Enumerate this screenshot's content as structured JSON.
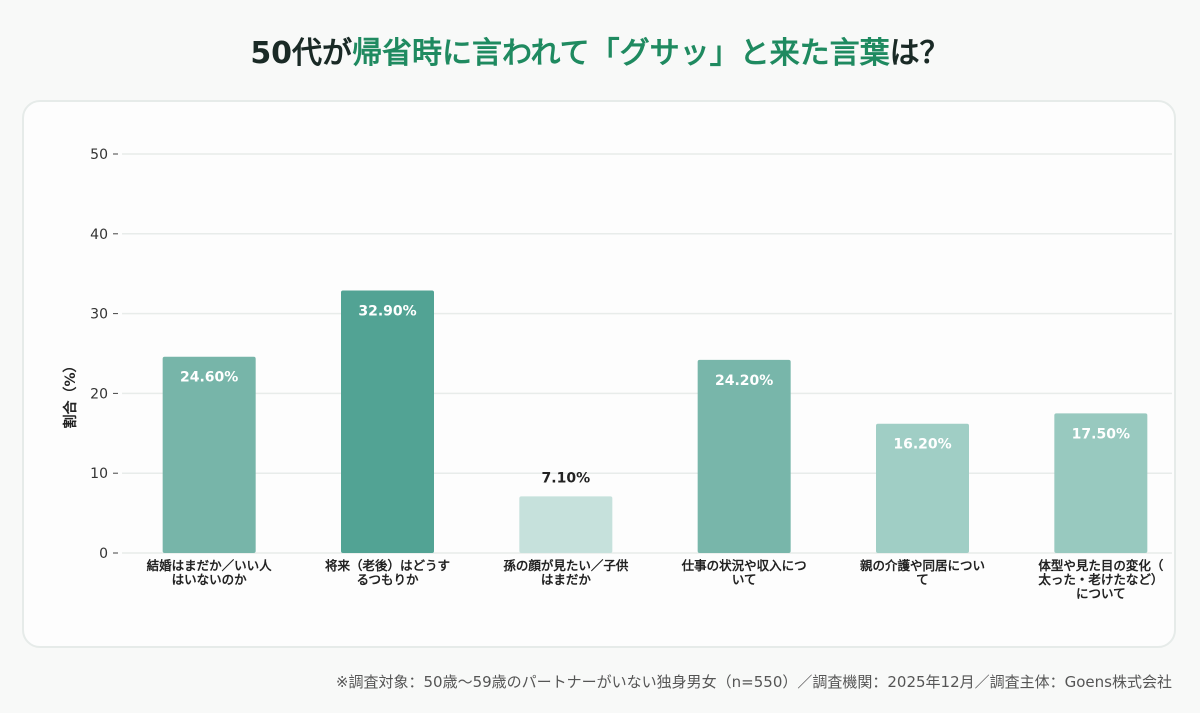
{
  "title": {
    "part1": "50代が",
    "part2": "帰省時に言われて「グサッ」と来た言葉",
    "part3": "は？"
  },
  "chart_data": {
    "type": "bar",
    "title": "50代が帰省時に言われて「グサッ」と来た言葉は？",
    "xlabel": "",
    "ylabel": "割合（%）",
    "ylim": [
      0,
      50
    ],
    "yticks": [
      0,
      10,
      20,
      30,
      40,
      50
    ],
    "grid": true,
    "categories": [
      [
        "結婚はまだか／いい人",
        "はいないのか"
      ],
      [
        "将来（老後）はどうす",
        "るつもりか"
      ],
      [
        "孫の顔が見たい／子供",
        "はまだか"
      ],
      [
        "仕事の状況や収入につ",
        "いて"
      ],
      [
        "親の介護や同居につい",
        "て"
      ],
      [
        "体型や見た目の変化（",
        "太った・老けたなど）",
        "について"
      ]
    ],
    "values": [
      24.6,
      32.9,
      7.1,
      24.2,
      16.2,
      17.5
    ],
    "data_labels": [
      "24.60%",
      "32.90%",
      "7.10%",
      "24.20%",
      "16.20%",
      "17.50%"
    ],
    "colors": [
      "#77b5a9",
      "#52a394",
      "#c6e1dc",
      "#78b6aa",
      "#a0cec5",
      "#98c9bf"
    ]
  },
  "footnote": "※調査対象：50歳〜59歳のパートナーがいない独身男女（n=550）／調査機関：2025年12月／調査主体：Goens株式会社"
}
